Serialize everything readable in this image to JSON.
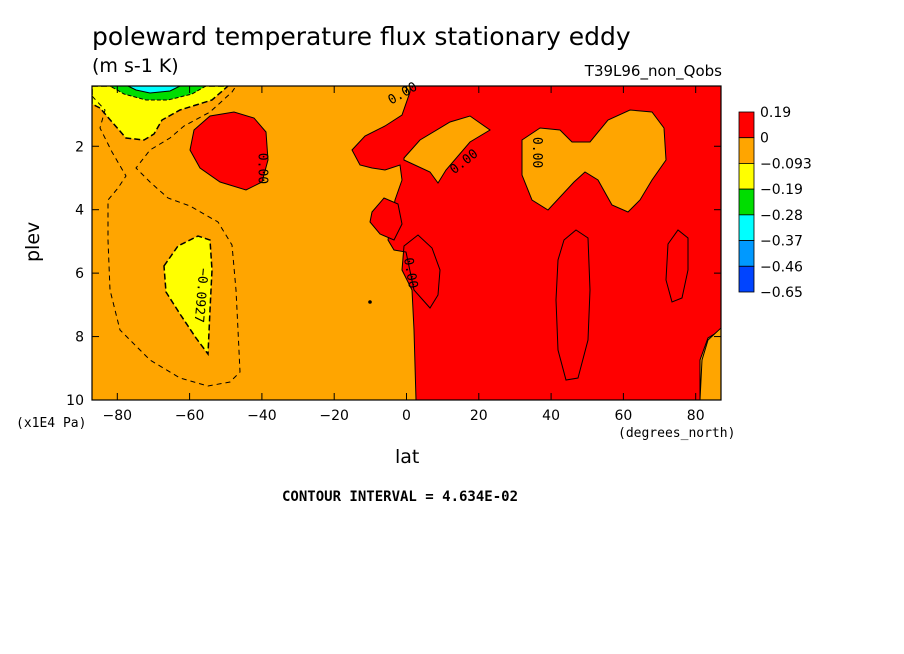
{
  "chart_data": {
    "type": "heatmap",
    "title": "poleward temperature flux stationary eddy",
    "units": "(m s-1 K)",
    "run_label": "T39L96_non_Qobs",
    "xlabel": "lat",
    "ylabel": "plev",
    "x_unit_label": "(degrees_north)",
    "y_unit_label": "(x1E4 Pa)",
    "x_ticks": [
      -80,
      -60,
      -40,
      -20,
      0,
      20,
      40,
      60,
      80
    ],
    "y_ticks": [
      2,
      4,
      6,
      8,
      10
    ],
    "xlim": [
      -87,
      87
    ],
    "ylim": [
      10,
      0.1
    ],
    "contour_interval_text": "CONTOUR INTERVAL = 4.634E-02",
    "colorbar_labels": [
      "0.19",
      "0",
      "-0.093",
      "-0.19",
      "-0.28",
      "-0.37",
      "-0.46",
      "-0.65"
    ],
    "colorbar_colors": [
      "#ff0000",
      "#ffa500",
      "#ffff00",
      "#00dd00",
      "#00ffff",
      "#0099ff",
      "#0044ff"
    ],
    "contour_labels": [
      {
        "text": "0.00",
        "lat": -40,
        "plev": 2.7,
        "angle": 90
      },
      {
        "text": "0.00",
        "lat": -1,
        "plev": 0.35,
        "angle": -30
      },
      {
        "text": "0.00",
        "lat": 16,
        "plev": 2.5,
        "angle": -38
      },
      {
        "text": "0.00",
        "lat": 36,
        "plev": 2.2,
        "angle": 90
      },
      {
        "text": "0.00",
        "lat": 1,
        "plev": 6.0,
        "angle": 80
      },
      {
        "text": "-0.0927",
        "lat": -57,
        "plev": 6.7,
        "angle": 95
      }
    ]
  }
}
